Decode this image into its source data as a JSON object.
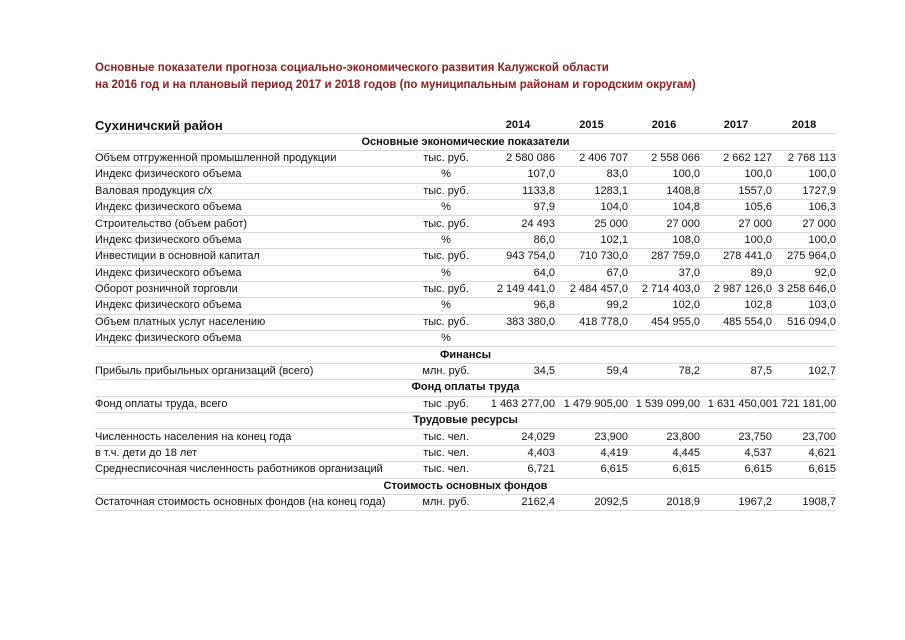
{
  "title": {
    "line1": "Основные показатели прогноза социально-экономического развития Калужской области",
    "line2": "на 2016 год и на плановый период  2017 и 2018 годов (по муниципальным районам и городским округам)"
  },
  "table": {
    "district": "Сухиничский район",
    "years": [
      "2014",
      "2015",
      "2016",
      "2017",
      "2018"
    ],
    "sections": [
      {
        "header": "Основные экономические показатели",
        "rows": [
          {
            "label": "Объем отгруженной промышленной продукции",
            "unit": "тыс. руб.",
            "values": [
              "2 580 086",
              "2 406 707",
              "2 558 066",
              "2 662 127",
              "2 768 113"
            ]
          },
          {
            "label": "Индекс физического объема",
            "unit": "%",
            "values": [
              "107,0",
              "83,0",
              "100,0",
              "100,0",
              "100,0"
            ]
          },
          {
            "label": "Валовая продукция с/х",
            "unit": "тыс. руб.",
            "values": [
              "1133,8",
              "1283,1",
              "1408,8",
              "1557,0",
              "1727,9"
            ]
          },
          {
            "label": "Индекс физического объема",
            "unit": "%",
            "values": [
              "97,9",
              "104,0",
              "104,8",
              "105,6",
              "106,3"
            ]
          },
          {
            "label": "Строительство (объем работ)",
            "unit": "тыс. руб.",
            "values": [
              "24 493",
              "25 000",
              "27 000",
              "27 000",
              "27 000"
            ]
          },
          {
            "label": "Индекс физического объема",
            "unit": "%",
            "values": [
              "86,0",
              "102,1",
              "108,0",
              "100,0",
              "100,0"
            ]
          },
          {
            "label": "Инвестиции в основной капитал",
            "unit": "тыс. руб.",
            "values": [
              "943 754,0",
              "710 730,0",
              "287 759,0",
              "278 441,0",
              "275 964,0"
            ]
          },
          {
            "label": "Индекс физического объема",
            "unit": "%",
            "values": [
              "64,0",
              "67,0",
              "37,0",
              "89,0",
              "92,0"
            ]
          },
          {
            "label": "Оборот розничной торговли",
            "unit": "тыс. руб.",
            "values": [
              "2 149 441,0",
              "2 484 457,0",
              "2 714 403,0",
              "2 987 126,0",
              "3 258 646,0"
            ]
          },
          {
            "label": "Индекс физического объема",
            "unit": "%",
            "values": [
              "96,8",
              "99,2",
              "102,0",
              "102,8",
              "103,0"
            ]
          },
          {
            "label": "Объем платных услуг населению",
            "unit": "тыс. руб.",
            "values": [
              "383 380,0",
              "418 778,0",
              "454 955,0",
              "485 554,0",
              "516 094,0"
            ]
          },
          {
            "label": "Индекс физического объема",
            "unit": "%",
            "values": [
              "",
              "",
              "",
              "",
              ""
            ]
          }
        ]
      },
      {
        "header": "Финансы",
        "rows": [
          {
            "label": "Прибыль прибыльных организаций (всего)",
            "unit": "млн. руб.",
            "values": [
              "34,5",
              "59,4",
              "78,2",
              "87,5",
              "102,7"
            ]
          }
        ]
      },
      {
        "header": "Фонд оплаты труда",
        "rows": [
          {
            "label": "Фонд оплаты труда, всего",
            "unit": "тыс .руб.",
            "values": [
              "1 463 277,00",
              "1 479 905,00",
              "1 539 099,00",
              "1 631 450,00",
              "1 721 181,00"
            ]
          }
        ]
      },
      {
        "header": "Трудовые ресурсы",
        "rows": [
          {
            "label": "Численность населения на конец года",
            "unit": "тыс. чел.",
            "values": [
              "24,029",
              "23,900",
              "23,800",
              "23,750",
              "23,700"
            ]
          },
          {
            "label": "в т.ч. дети до 18 лет",
            "unit": "тыс. чел.",
            "values": [
              "4,403",
              "4,419",
              "4,445",
              "4,537",
              "4,621"
            ]
          },
          {
            "label": "Среднесписочная численность работников организаций",
            "unit": "тыс. чел.",
            "values": [
              "6,721",
              "6,615",
              "6,615",
              "6,615",
              "6,615"
            ]
          }
        ]
      },
      {
        "header": "Стоимость основных фондов",
        "rows": [
          {
            "label": "Остаточная стоимость основных фондов (на конец года)",
            "unit": "млн. руб.",
            "values": [
              "2162,4",
              "2092,5",
              "2018,9",
              "1967,2",
              "1908,7"
            ]
          }
        ]
      }
    ]
  }
}
